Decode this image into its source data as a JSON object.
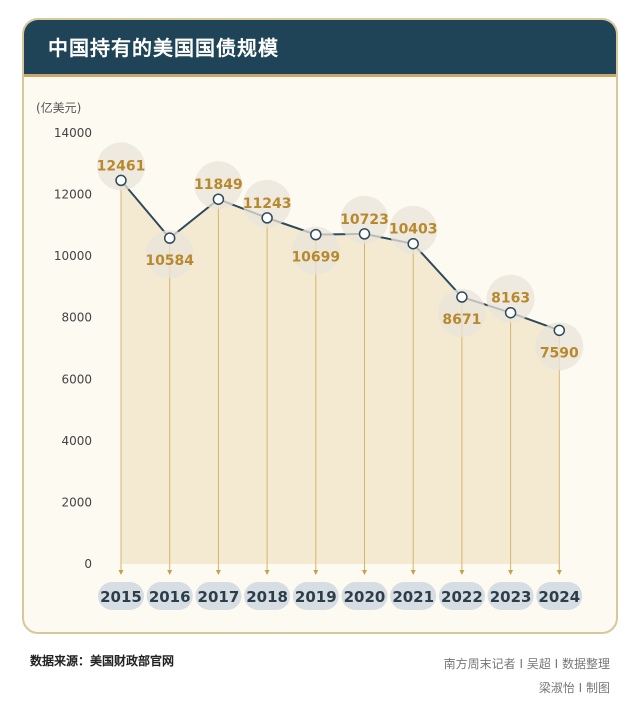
{
  "header": {
    "title": "中国持有的美国国债规模"
  },
  "footer": {
    "source": "数据来源：美国财政部官网",
    "credit1": "南方周末记者 I 吴超 I 数据整理",
    "credit2": "梁淑怡 I 制图"
  },
  "colors": {
    "header_bg": "#1f4457",
    "accent": "#caa86a",
    "line": "#2e4b5a",
    "area": "#f2e6cc",
    "label": "#b8892c",
    "year_pill": "#d6dde3"
  },
  "chart_data": {
    "type": "area",
    "title": "中国持有的美国国债规模",
    "ylabel": "(亿美元)",
    "xlabel": "",
    "categories": [
      "2015",
      "2016",
      "2017",
      "2018",
      "2019",
      "2020",
      "2021",
      "2022",
      "2023",
      "2024"
    ],
    "values": [
      12461,
      10584,
      11849,
      11243,
      10699,
      10723,
      10403,
      8671,
      8163,
      7590
    ],
    "ylim": [
      0,
      14000
    ],
    "yticks": [
      0,
      2000,
      4000,
      6000,
      8000,
      10000,
      12000,
      14000
    ],
    "label_position": [
      "above",
      "below",
      "above",
      "above",
      "below",
      "above",
      "above",
      "below",
      "above",
      "below"
    ],
    "grid": false,
    "legend": "none"
  }
}
